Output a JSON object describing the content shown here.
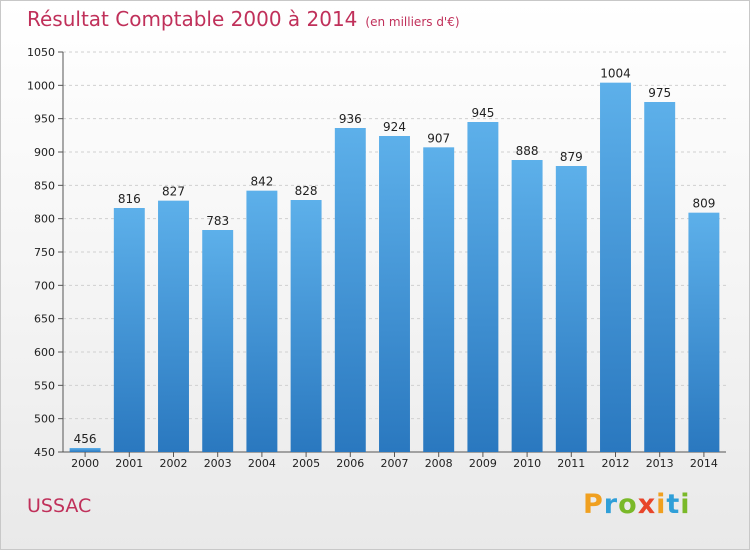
{
  "chart_data": {
    "type": "bar",
    "title": "Résultat Comptable 2000 à 2014",
    "subtitle": "(en milliers d'€)",
    "categories": [
      "2000",
      "2001",
      "2002",
      "2003",
      "2004",
      "2005",
      "2006",
      "2007",
      "2008",
      "2009",
      "2010",
      "2011",
      "2012",
      "2013",
      "2014"
    ],
    "values": [
      456,
      816,
      827,
      783,
      842,
      828,
      936,
      924,
      907,
      945,
      888,
      879,
      1004,
      975,
      809
    ],
    "xlabel": "",
    "ylabel": "",
    "ylim": [
      450,
      1050
    ],
    "yticks": [
      450,
      500,
      550,
      600,
      650,
      700,
      750,
      800,
      850,
      900,
      950,
      1000,
      1050
    ],
    "grid": true,
    "legend": "none",
    "bar_color": "#3d93d6"
  },
  "footer": {
    "location": "USSAC",
    "logo": [
      "P",
      "r",
      "o",
      "x",
      "i",
      "t",
      "i"
    ],
    "logo_colors": [
      "#f0a020",
      "#2f9fd8",
      "#7ab929",
      "#e8452a",
      "#f0a020",
      "#2f9fd8",
      "#7ab929"
    ]
  }
}
